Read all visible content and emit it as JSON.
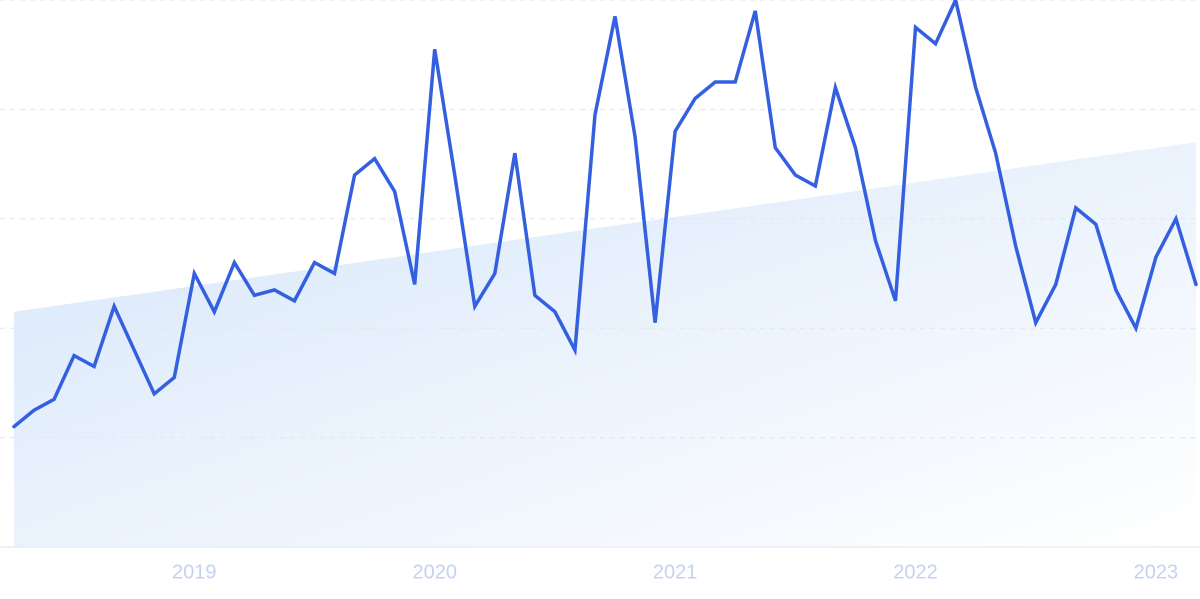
{
  "chart_data": {
    "type": "line",
    "categories": [
      null,
      null,
      null,
      null,
      null,
      null,
      null,
      null,
      null,
      "2019",
      null,
      null,
      null,
      null,
      null,
      null,
      null,
      null,
      null,
      null,
      null,
      "2020",
      null,
      null,
      null,
      null,
      null,
      null,
      null,
      null,
      null,
      null,
      null,
      "2021",
      null,
      null,
      null,
      null,
      null,
      null,
      null,
      null,
      null,
      null,
      null,
      "2022",
      null,
      null,
      null,
      null,
      null,
      null,
      null,
      null,
      null,
      null,
      null,
      "2023",
      null,
      null
    ],
    "series": [
      {
        "color": "#3460e0",
        "values": [
          22,
          25,
          27,
          35,
          33,
          44,
          36,
          28,
          31,
          50,
          43,
          52,
          46,
          47,
          45,
          52,
          50,
          68,
          71,
          65,
          48,
          91,
          68,
          44,
          50,
          72,
          46,
          43,
          36,
          79,
          97,
          75,
          41,
          76,
          82,
          85,
          85,
          98,
          73,
          68,
          66,
          84,
          73,
          56,
          45,
          95,
          92,
          100,
          84,
          72,
          55,
          41,
          48,
          62,
          59,
          47,
          40,
          53,
          60,
          48
        ]
      }
    ],
    "trend": [
      43,
      74
    ],
    "trend_color": "#d6e6fa",
    "ylim": [
      0,
      100
    ],
    "yticks": [
      0,
      20,
      40,
      60,
      80,
      100
    ],
    "grid": true
  }
}
